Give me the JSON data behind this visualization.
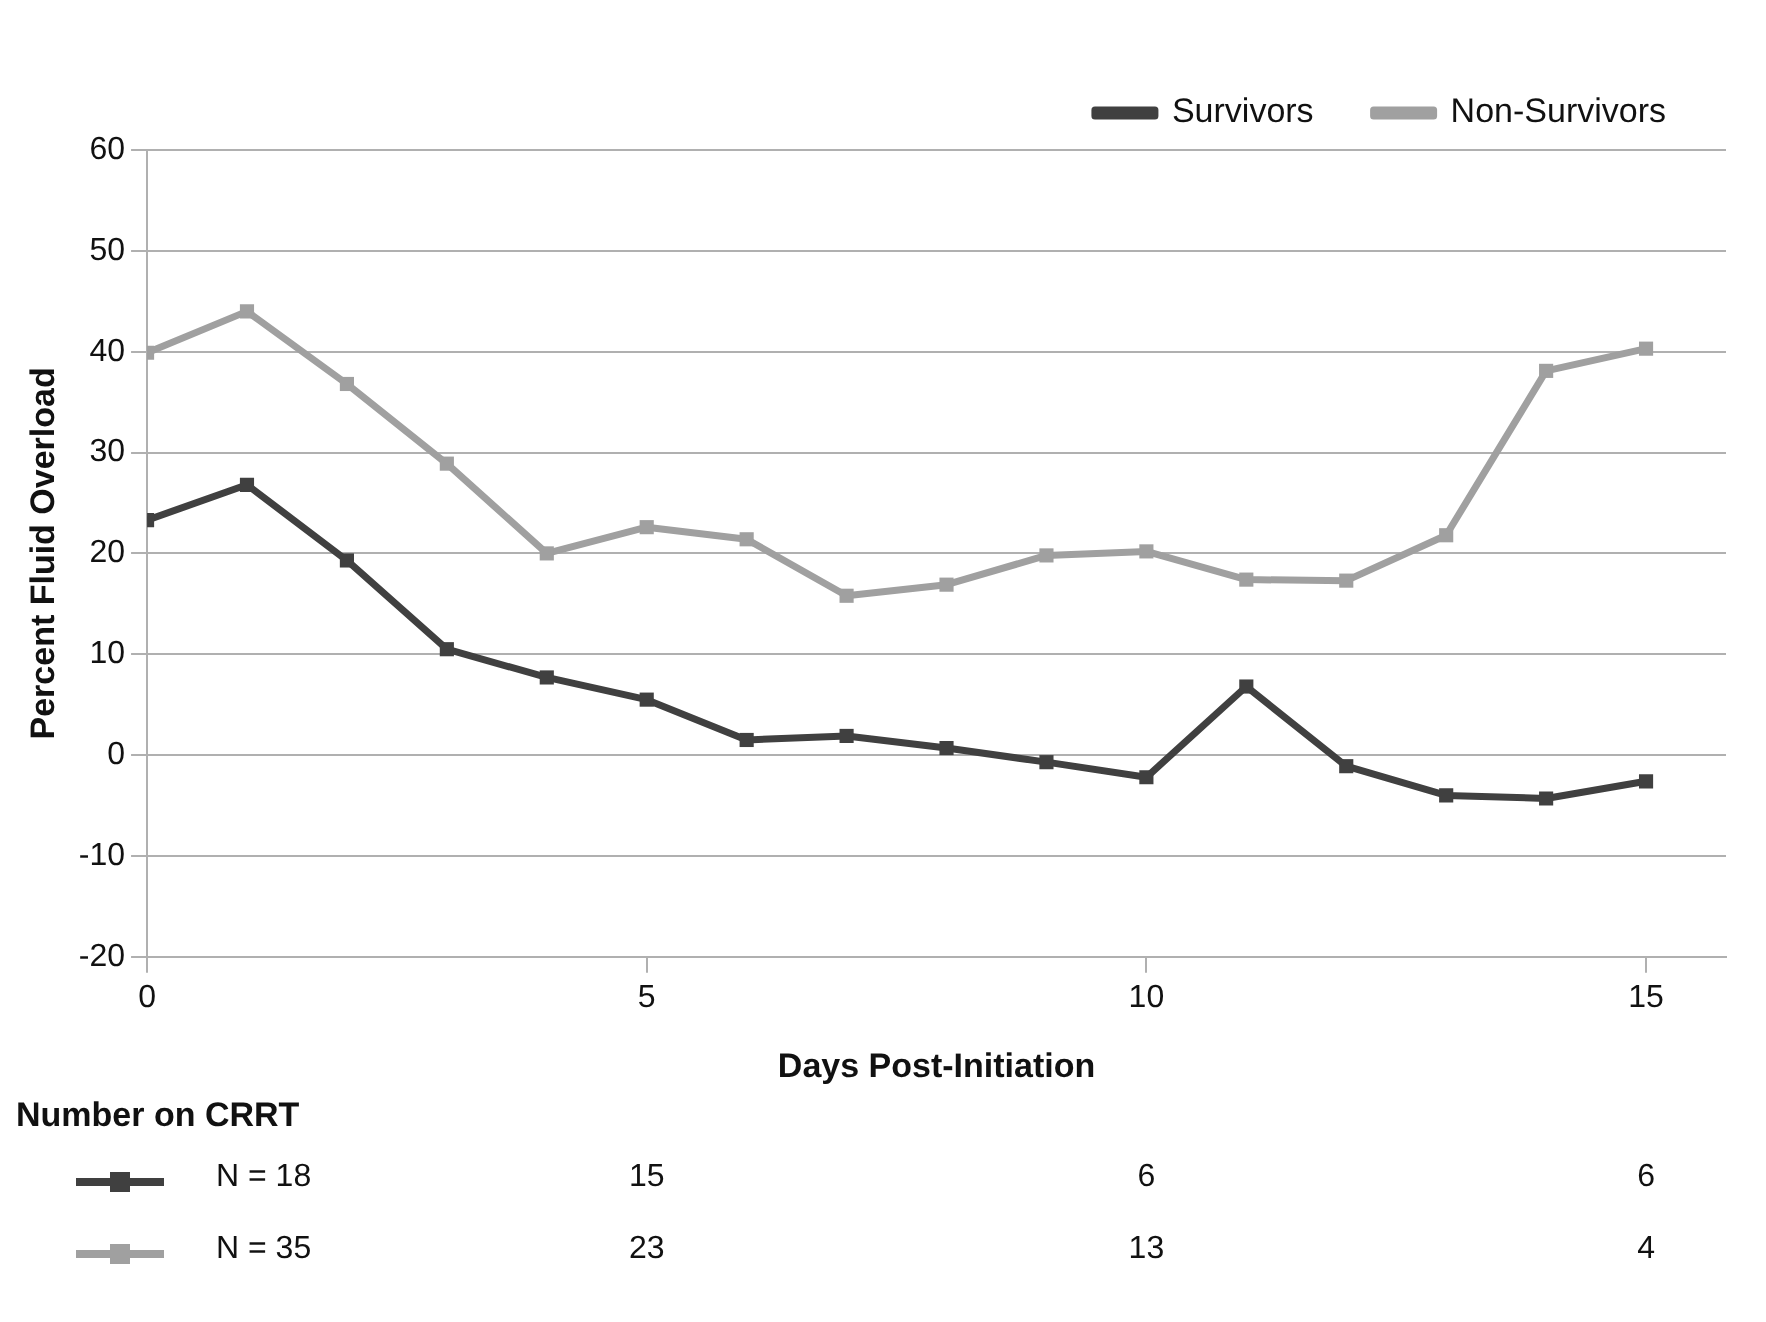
{
  "chart_data": {
    "type": "line",
    "xlabel": "Days Post-Initiation",
    "ylabel": "Percent Fluid Overload",
    "x": [
      0,
      1,
      2,
      3,
      4,
      5,
      6,
      7,
      8,
      9,
      10,
      11,
      12,
      13,
      14,
      15
    ],
    "series": [
      {
        "name": "Survivors",
        "color": "#404040",
        "values": [
          23.3,
          26.8,
          19.3,
          10.5,
          7.7,
          5.5,
          1.5,
          1.9,
          0.7,
          -0.7,
          -2.2,
          6.8,
          -1.1,
          -4.0,
          -4.3,
          -2.6
        ]
      },
      {
        "name": "Non-Survivors",
        "color": "#a0a0a0",
        "values": [
          39.9,
          44.0,
          36.8,
          28.9,
          20.0,
          22.6,
          21.4,
          15.8,
          16.9,
          19.8,
          20.2,
          17.4,
          17.3,
          21.8,
          38.1,
          40.3
        ]
      }
    ],
    "xlim": [
      0,
      15.8
    ],
    "xticks": [
      0,
      5,
      10,
      15
    ],
    "ylim": [
      -20,
      60
    ],
    "yticks": [
      -20,
      -10,
      0,
      10,
      20,
      30,
      40,
      50,
      60
    ],
    "grid": "y",
    "legend": "top right",
    "marker": "square",
    "line_style": "solid",
    "annotations": [
      "Number on CRRT",
      "N = 18",
      "15",
      "6",
      "6",
      "N = 35",
      "23",
      "13",
      "4"
    ]
  }
}
